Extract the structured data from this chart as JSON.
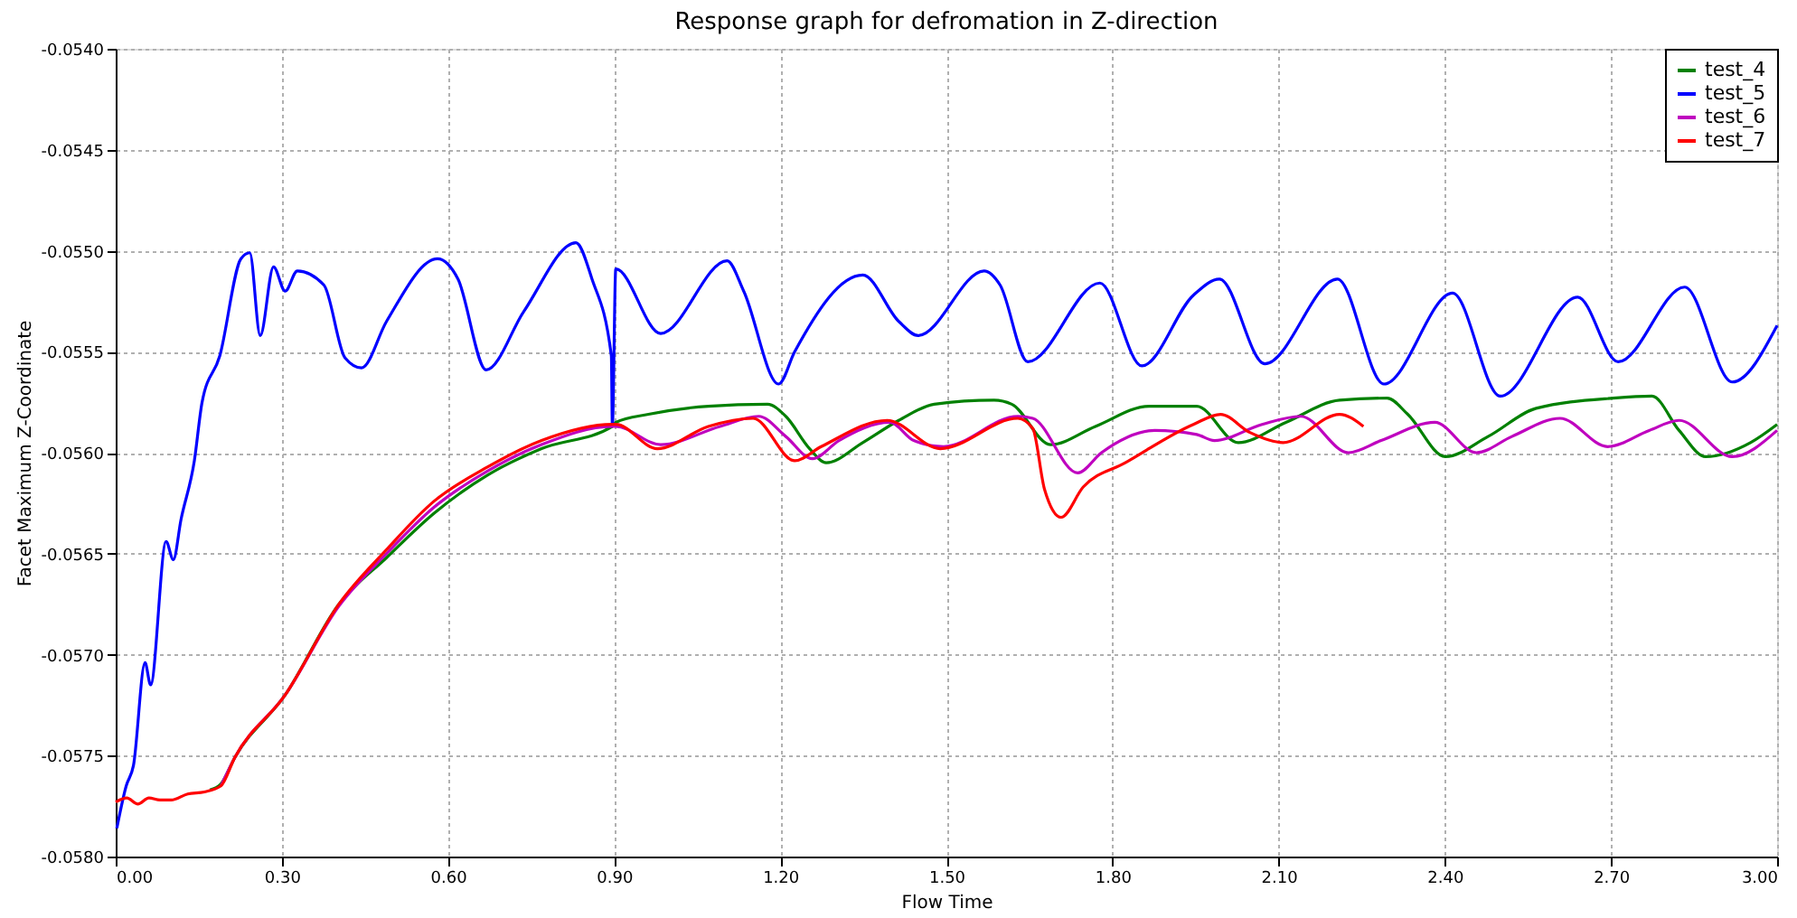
{
  "chart_data": {
    "type": "line",
    "title": "Response graph for defromation in Z-direction",
    "xlabel": "Flow Time",
    "ylabel": "Facet Maximum Z-Coordinate",
    "xlim": [
      0,
      3
    ],
    "ylim": [
      -0.058,
      -0.054
    ],
    "xticks": [
      {
        "value": 0,
        "label": "0.00"
      },
      {
        "value": 0.3,
        "label": "0.30"
      },
      {
        "value": 0.6,
        "label": "0.60"
      },
      {
        "value": 0.9,
        "label": "0.90"
      },
      {
        "value": 1.2,
        "label": "1.20"
      },
      {
        "value": 1.5,
        "label": "1.50"
      },
      {
        "value": 1.8,
        "label": "1.80"
      },
      {
        "value": 2.1,
        "label": "2.10"
      },
      {
        "value": 2.4,
        "label": "2.40"
      },
      {
        "value": 2.7,
        "label": "2.70"
      },
      {
        "value": 3,
        "label": "3.00"
      }
    ],
    "yticks": [
      {
        "value": -0.058,
        "label": "-0.0580"
      },
      {
        "value": -0.0575,
        "label": "-0.0575"
      },
      {
        "value": -0.057,
        "label": "-0.0570"
      },
      {
        "value": -0.0565,
        "label": "-0.0565"
      },
      {
        "value": -0.056,
        "label": "-0.0560"
      },
      {
        "value": -0.0555,
        "label": "-0.0555"
      },
      {
        "value": -0.055,
        "label": "-0.0550"
      },
      {
        "value": -0.0545,
        "label": "-0.0545"
      },
      {
        "value": -0.054,
        "label": "-0.0540"
      }
    ],
    "grid": true,
    "legend": "top right",
    "line_style": "solid",
    "marker": "none",
    "series": [
      {
        "name": "test_4",
        "color": "#008000",
        "x": [
          0.17,
          0.19,
          0.215,
          0.306,
          0.403,
          0.489,
          0.575,
          0.672,
          0.769,
          0.897,
          0.903,
          0.962,
          1.07,
          1.177,
          1.21,
          1.253,
          1.283,
          1.349,
          1.414,
          1.478,
          1.586,
          1.618,
          1.688,
          1.769,
          1.866,
          1.952,
          2.027,
          2.113,
          2.21,
          2.296,
          2.333,
          2.401,
          2.478,
          2.565,
          2.704,
          2.774,
          2.823,
          2.871,
          2.952,
          3.0
        ],
        "values": [
          -0.05767,
          -0.05764,
          -0.05751,
          -0.0572,
          -0.05675,
          -0.05652,
          -0.0563,
          -0.05611,
          -0.05598,
          -0.05587,
          -0.05585,
          -0.05581,
          -0.05577,
          -0.05576,
          -0.05582,
          -0.05598,
          -0.05605,
          -0.05595,
          -0.05584,
          -0.05576,
          -0.05574,
          -0.05576,
          -0.05596,
          -0.05587,
          -0.05577,
          -0.05577,
          -0.05595,
          -0.05585,
          -0.05574,
          -0.05573,
          -0.05581,
          -0.05602,
          -0.05592,
          -0.05578,
          -0.05573,
          -0.05572,
          -0.05589,
          -0.05602,
          -0.05595,
          -0.05586
        ]
      },
      {
        "name": "test_5",
        "color": "#0000ff",
        "x": [
          0.002,
          0.019,
          0.032,
          0.053,
          0.063,
          0.091,
          0.104,
          0.118,
          0.142,
          0.156,
          0.188,
          0.226,
          0.242,
          0.261,
          0.285,
          0.306,
          0.328,
          0.376,
          0.414,
          0.444,
          0.489,
          0.581,
          0.618,
          0.669,
          0.737,
          0.831,
          0.86,
          0.895,
          0.8968,
          0.903,
          0.984,
          1.104,
          1.134,
          1.197,
          1.226,
          1.349,
          1.414,
          1.449,
          1.568,
          1.597,
          1.647,
          1.777,
          1.853,
          1.946,
          1.993,
          2.075,
          2.206,
          2.29,
          2.414,
          2.5,
          2.64,
          2.713,
          2.833,
          2.919,
          3.0
        ],
        "values": [
          -0.05786,
          -0.05765,
          -0.05755,
          -0.05704,
          -0.05715,
          -0.05644,
          -0.05653,
          -0.05633,
          -0.05604,
          -0.05575,
          -0.05552,
          -0.05504,
          -0.05501,
          -0.05542,
          -0.05508,
          -0.0552,
          -0.0551,
          -0.05517,
          -0.05553,
          -0.05558,
          -0.05535,
          -0.05504,
          -0.05514,
          -0.05559,
          -0.0553,
          -0.05496,
          -0.05514,
          -0.05552,
          -0.05587,
          -0.05509,
          -0.05541,
          -0.05505,
          -0.0552,
          -0.05566,
          -0.0555,
          -0.05512,
          -0.05535,
          -0.05542,
          -0.0551,
          -0.05517,
          -0.05555,
          -0.05516,
          -0.05557,
          -0.05522,
          -0.05514,
          -0.05556,
          -0.05514,
          -0.05566,
          -0.05521,
          -0.05572,
          -0.05523,
          -0.05555,
          -0.05518,
          -0.05565,
          -0.05537
        ]
      },
      {
        "name": "test_6",
        "color": "#bf00bf",
        "x": [
          0.19,
          0.215,
          0.306,
          0.403,
          0.489,
          0.575,
          0.672,
          0.769,
          0.897,
          0.903,
          0.984,
          1.091,
          1.161,
          1.21,
          1.258,
          1.306,
          1.398,
          1.441,
          1.495,
          1.629,
          1.656,
          1.737,
          1.78,
          1.876,
          1.952,
          1.984,
          2.07,
          2.14,
          2.226,
          2.285,
          2.382,
          2.457,
          2.521,
          2.608,
          2.694,
          2.769,
          2.823,
          2.919,
          3.0
        ],
        "values": [
          -0.05765,
          -0.05751,
          -0.0572,
          -0.05676,
          -0.0565,
          -0.05627,
          -0.05609,
          -0.05596,
          -0.05587,
          -0.05587,
          -0.05596,
          -0.05587,
          -0.05582,
          -0.05592,
          -0.05603,
          -0.05594,
          -0.05585,
          -0.05594,
          -0.05597,
          -0.05582,
          -0.05583,
          -0.0561,
          -0.056,
          -0.05589,
          -0.05591,
          -0.05594,
          -0.05586,
          -0.05582,
          -0.056,
          -0.05594,
          -0.05585,
          -0.056,
          -0.05592,
          -0.05583,
          -0.05597,
          -0.05589,
          -0.05584,
          -0.05602,
          -0.05589
        ]
      },
      {
        "name": "test_7",
        "color": "#ff0000",
        "x": [
          0,
          0.02,
          0.04,
          0.06,
          0.08,
          0.1,
          0.13,
          0.16,
          0.19,
          0.215,
          0.306,
          0.403,
          0.489,
          0.575,
          0.672,
          0.769,
          0.897,
          0.903,
          0.978,
          1.07,
          1.151,
          1.226,
          1.274,
          1.393,
          1.489,
          1.629,
          1.656,
          1.677,
          1.707,
          1.747,
          1.823,
          1.946,
          1.995,
          2.048,
          2.108,
          2.21,
          2.253
        ],
        "values": [
          -0.05773,
          -0.05771,
          -0.05774,
          -0.05771,
          -0.05772,
          -0.05772,
          -0.05769,
          -0.05768,
          -0.05765,
          -0.05751,
          -0.0572,
          -0.05675,
          -0.05648,
          -0.05624,
          -0.05607,
          -0.05594,
          -0.05586,
          -0.05586,
          -0.05598,
          -0.05587,
          -0.05583,
          -0.05604,
          -0.05597,
          -0.05584,
          -0.05598,
          -0.05583,
          -0.05588,
          -0.05618,
          -0.05632,
          -0.05617,
          -0.05605,
          -0.05586,
          -0.05581,
          -0.0559,
          -0.05595,
          -0.05581,
          -0.05587
        ]
      }
    ]
  }
}
